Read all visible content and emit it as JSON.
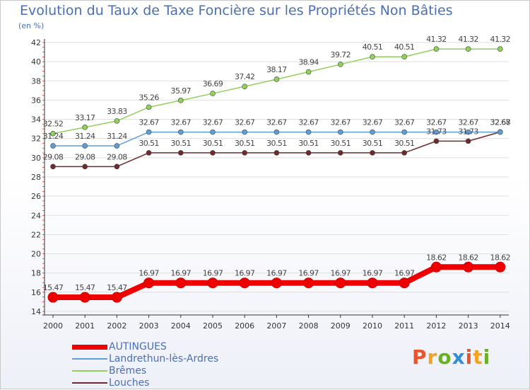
{
  "title": "Evolution du Taux de Taxe Foncière sur les Propriétés Non Bâties",
  "unit": "(en %)",
  "logo": {
    "text": "Proxiti",
    "colors": [
      "#e8542b",
      "#f3a31d",
      "#6ab023",
      "#2f8fd8",
      "#e8542b",
      "#f3a31d",
      "#6ab023"
    ]
  },
  "chart_data": {
    "type": "line",
    "x": [
      2000,
      2001,
      2002,
      2003,
      2004,
      2005,
      2006,
      2007,
      2008,
      2009,
      2010,
      2011,
      2012,
      2013,
      2014
    ],
    "ylim": [
      14,
      42
    ],
    "yticks": [
      14,
      16,
      18,
      20,
      22,
      24,
      26,
      28,
      30,
      32,
      34,
      36,
      38,
      40,
      42
    ],
    "grid": "horizontal",
    "legend_position": "bottom-left",
    "series": [
      {
        "name": "AUTINGUES",
        "color": "#ee0000",
        "thick": true,
        "values": [
          15.47,
          15.47,
          15.47,
          16.97,
          16.97,
          16.97,
          16.97,
          16.97,
          16.97,
          16.97,
          16.97,
          16.97,
          18.62,
          18.62,
          18.62
        ],
        "labels": [
          "15.47",
          "15.47",
          "15.47",
          "16.97",
          "16.97",
          "16.97",
          "16.97",
          "16.97",
          "16.97",
          "16.97",
          "16.97",
          "16.97",
          "18.62",
          "18.62",
          "18.62"
        ]
      },
      {
        "name": "Landrethun-lès-Ardres",
        "color": "#5d9ed6",
        "thick": false,
        "values": [
          31.24,
          31.24,
          31.24,
          32.67,
          32.67,
          32.67,
          32.67,
          32.67,
          32.67,
          32.67,
          32.67,
          32.67,
          32.67,
          32.67,
          32.67
        ],
        "labels": [
          "31.24",
          "31.24",
          "31.24",
          "32.67",
          "32.67",
          "32.67",
          "32.67",
          "32.67",
          "32.67",
          "32.67",
          "32.67",
          "32.67",
          "32.67",
          "32.67",
          "32.67"
        ]
      },
      {
        "name": "Brêmes",
        "color": "#8fd15a",
        "thick": false,
        "values": [
          32.52,
          33.17,
          33.83,
          35.26,
          35.97,
          36.69,
          37.42,
          38.17,
          38.94,
          39.72,
          40.51,
          40.51,
          41.32,
          41.32,
          41.32
        ],
        "labels": [
          "32.52",
          "33.17",
          "33.83",
          "35.26",
          "35.97",
          "36.69",
          "37.42",
          "38.17",
          "38.94",
          "39.72",
          "40.51",
          "40.51",
          "41.32",
          "41.32",
          "41.32"
        ]
      },
      {
        "name": "Louches",
        "color": "#6e2a2a",
        "thick": false,
        "values": [
          29.08,
          29.08,
          29.08,
          30.51,
          30.51,
          30.51,
          30.51,
          30.51,
          30.51,
          30.51,
          30.51,
          30.51,
          31.73,
          31.73,
          32.68
        ],
        "labels": [
          "29.08",
          "29.08",
          "29.08",
          "30.51",
          "30.51",
          "30.51",
          "30.51",
          "30.51",
          "30.51",
          "30.51",
          "30.51",
          "30.51",
          "31.73",
          "31.73",
          "32.68"
        ]
      }
    ]
  }
}
